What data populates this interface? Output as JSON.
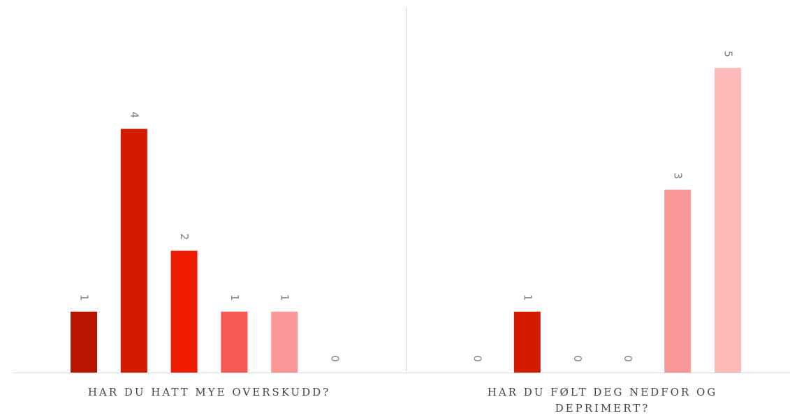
{
  "chart_data": {
    "type": "bar",
    "categories": [
      "HAR DU HATT MYE OVERSKUDD?",
      "HAR DU FØLT DEG NEDFOR OG DEPRIMERT?"
    ],
    "series": [
      {
        "color": "#b81400",
        "values": [
          1,
          0
        ]
      },
      {
        "color": "#d41a00",
        "values": [
          4,
          1
        ]
      },
      {
        "color": "#ee1c00",
        "values": [
          2,
          0
        ]
      },
      {
        "color": "#f75a55",
        "values": [
          1,
          0
        ]
      },
      {
        "color": "#f99896",
        "values": [
          1,
          3
        ]
      },
      {
        "color": "#fbbab8",
        "values": [
          0,
          5
        ]
      }
    ],
    "ylim": [
      0,
      6
    ]
  }
}
